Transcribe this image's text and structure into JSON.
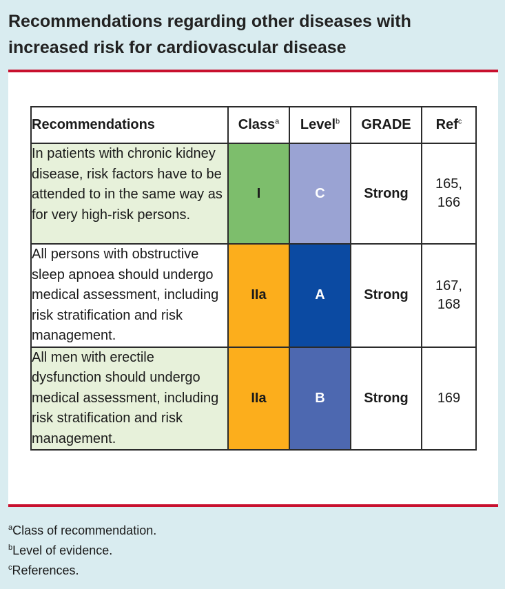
{
  "title": "Recommendations regarding other diseases with increased risk for cardiovascular disease",
  "table": {
    "headers": {
      "recommendations": "Recommendations",
      "class": "Class",
      "class_sup": "a",
      "level": "Level",
      "level_sup": "b",
      "grade": "GRADE",
      "ref": "Ref",
      "ref_sup": "c"
    },
    "rows": [
      {
        "text": "In patients with chronic kidney disease, risk factors have to be attended to in the same way as for very high-risk persons.",
        "class": "I",
        "level": "C",
        "grade": "Strong",
        "ref": "165, 166"
      },
      {
        "text": "All persons with obstructive sleep apnoea should undergo medical assessment, including risk stratification and risk management.",
        "class": "IIa",
        "level": "A",
        "grade": "Strong",
        "ref": "167, 168"
      },
      {
        "text": "All men with erectile dysfunction should undergo medical assessment, including risk stratification and risk management.",
        "class": "IIa",
        "level": "B",
        "grade": "Strong",
        "ref": "169"
      }
    ]
  },
  "footnotes": [
    {
      "mark": "a",
      "text": "Class of recommendation."
    },
    {
      "mark": "b",
      "text": "Level of evidence."
    },
    {
      "mark": "c",
      "text": "References."
    }
  ],
  "colors": {
    "background": "#d9ecf0",
    "accent_rule": "#c8102e",
    "class_I": "#7dbe6c",
    "class_IIa": "#fcae1c",
    "level_C": "#9aa3d3",
    "level_A": "#0b4aa2",
    "level_B": "#4d68b0",
    "row_tint": "#e7f1da"
  }
}
